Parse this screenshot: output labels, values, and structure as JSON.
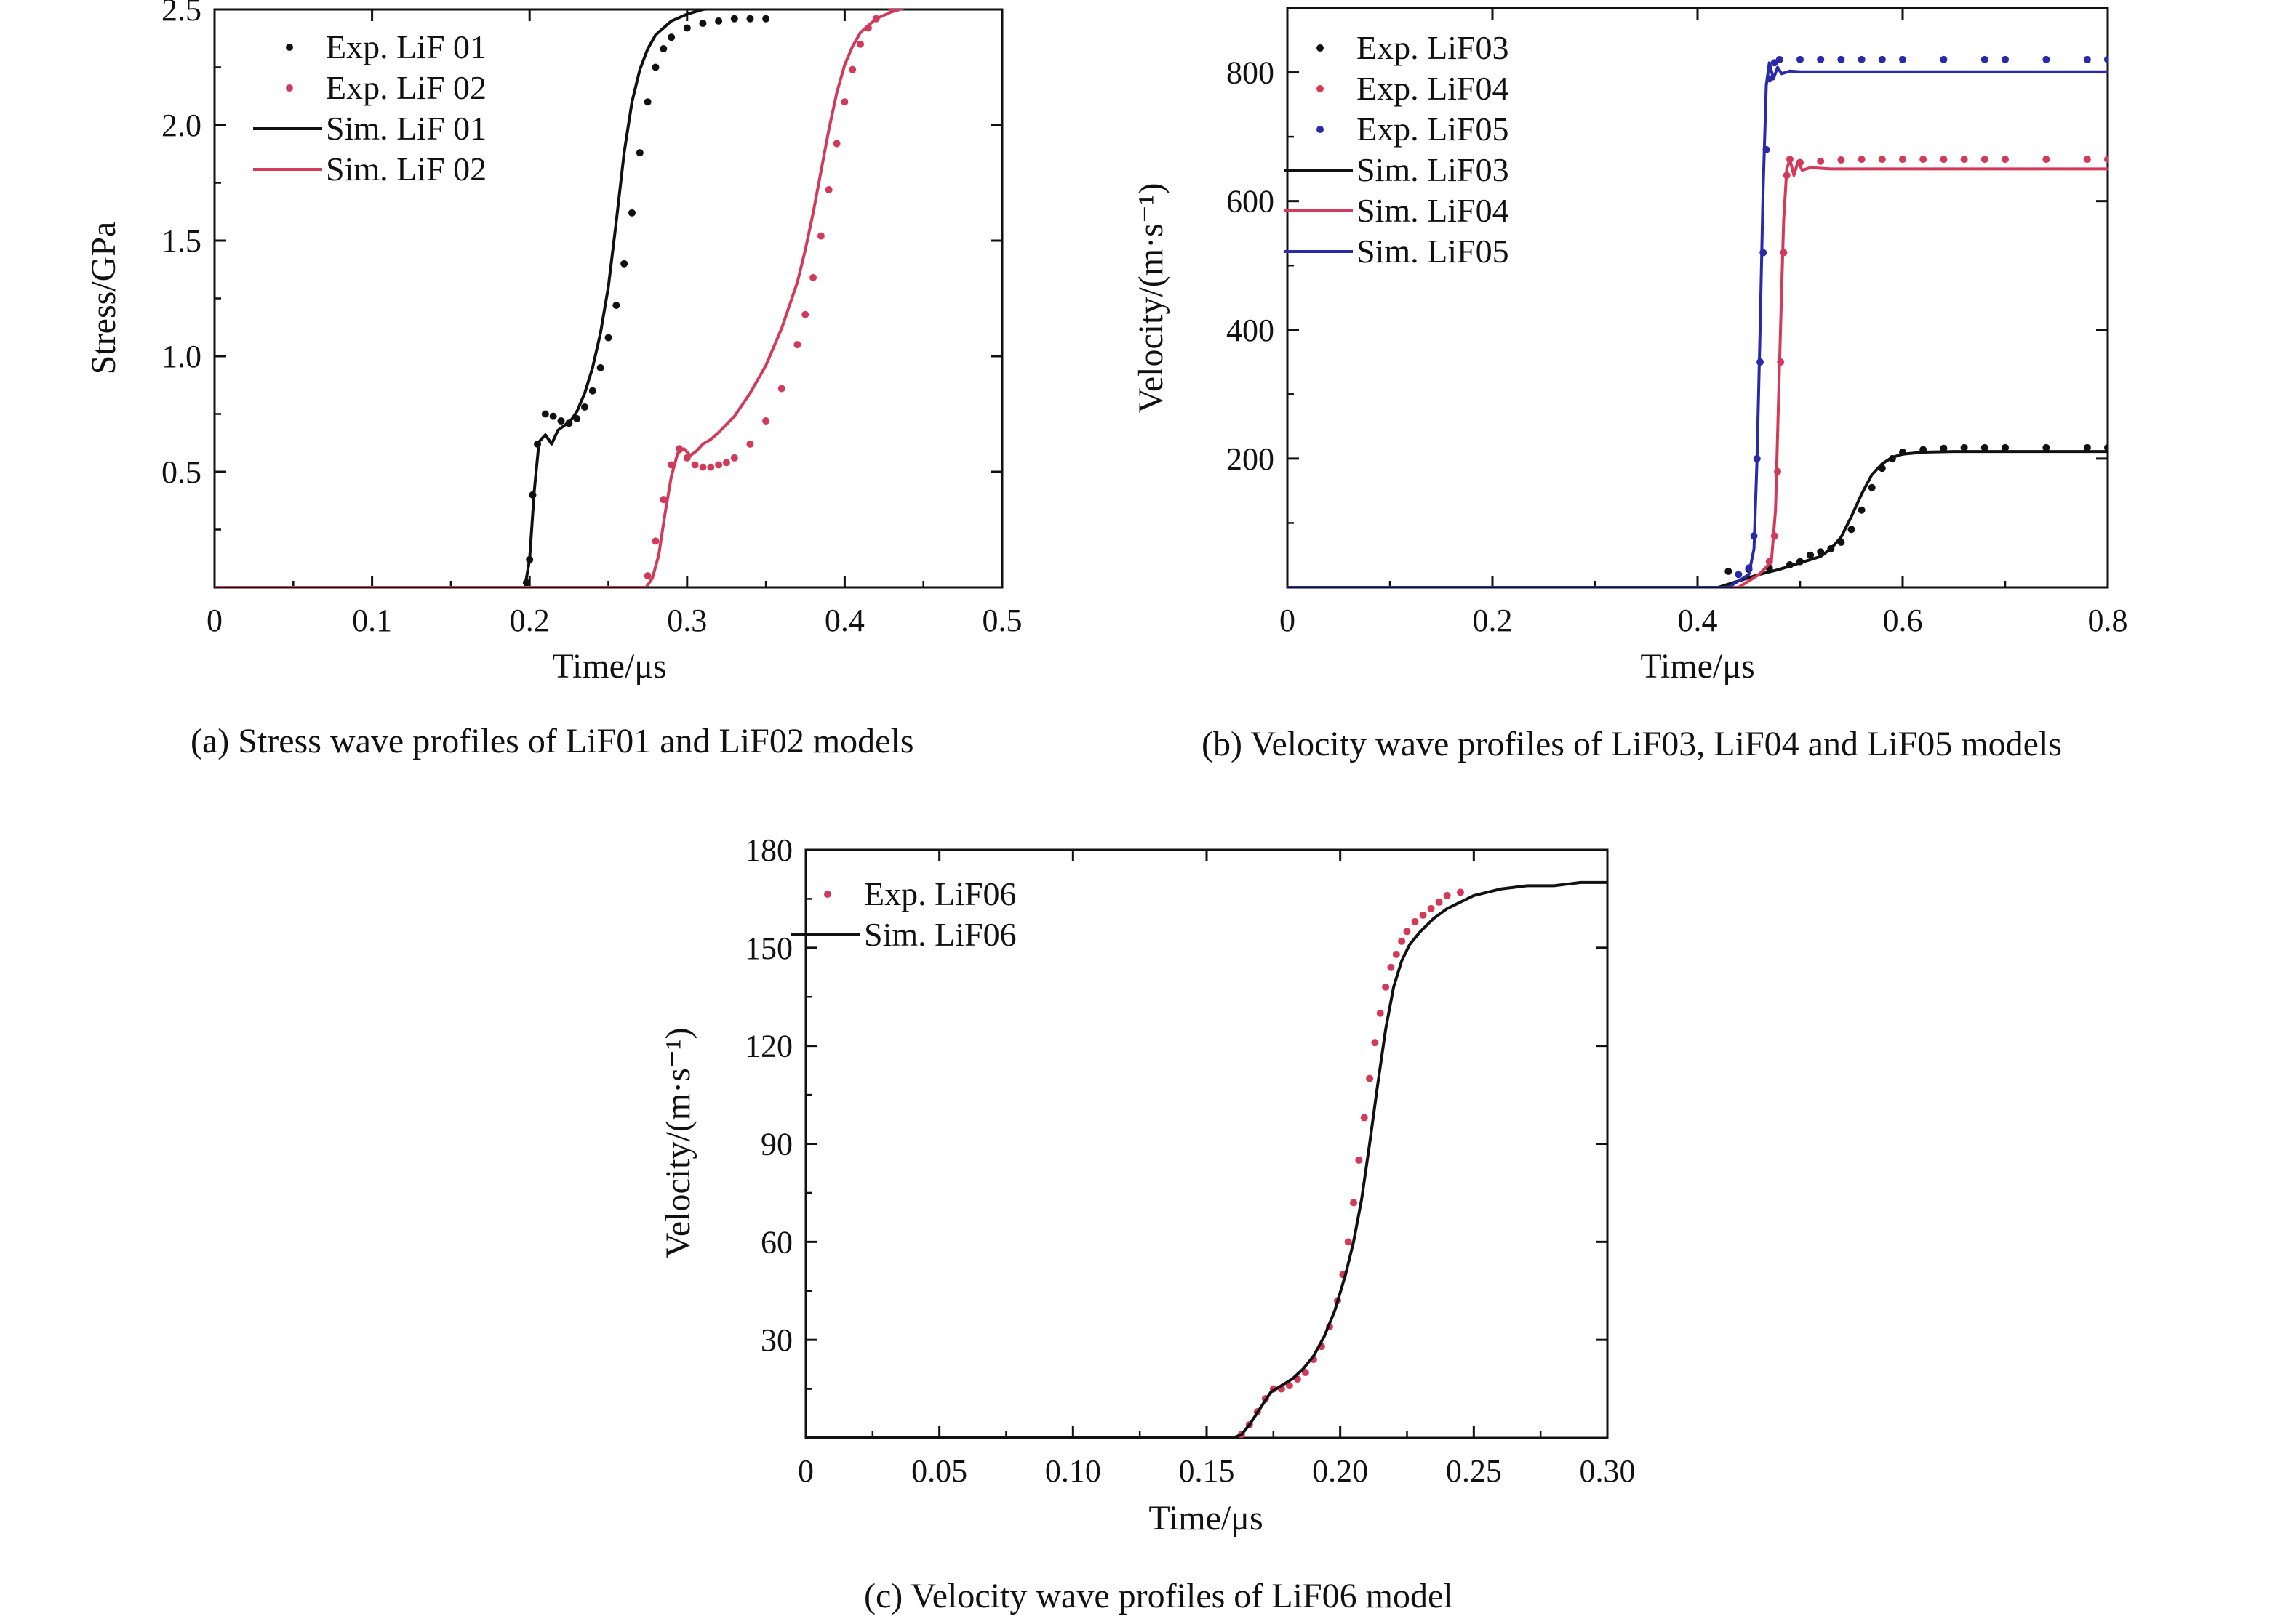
{
  "colors": {
    "black": "#111111",
    "red": "#d23a5a",
    "blue": "#2a2aa8"
  },
  "captions": {
    "a": "(a) Stress wave profiles of LiF01 and LiF02 models",
    "b": "(b) Velocity wave profiles of LiF03, LiF04 and LiF05 models",
    "c": "(c) Velocity wave profiles of LiF06 model"
  },
  "chart_data": [
    {
      "id": "a",
      "type": "line",
      "xlabel": "Time/μs",
      "ylabel": "Stress/GPa",
      "xlim": [
        0,
        0.5
      ],
      "ylim": [
        0,
        2.5
      ],
      "xticks": [
        0,
        0.1,
        0.2,
        0.3,
        0.4,
        0.5
      ],
      "xtick_labels": [
        "0",
        "0.1",
        "0.2",
        "0.3",
        "0.4",
        "0.5"
      ],
      "yticks": [
        0.5,
        1.0,
        1.5,
        2.0,
        2.5
      ],
      "ytick_labels": [
        "0.5",
        "1.0",
        "1.5",
        "2.0",
        "2.5"
      ],
      "legend_position": "top-left",
      "series": [
        {
          "name": "Exp. LiF 01",
          "style": "dots",
          "color": "#111111",
          "x": [
            0.198,
            0.2,
            0.202,
            0.205,
            0.21,
            0.215,
            0.22,
            0.225,
            0.23,
            0.235,
            0.24,
            0.245,
            0.25,
            0.255,
            0.26,
            0.265,
            0.27,
            0.275,
            0.28,
            0.285,
            0.29,
            0.3,
            0.31,
            0.32,
            0.33,
            0.34,
            0.35
          ],
          "y": [
            0.02,
            0.12,
            0.4,
            0.62,
            0.75,
            0.74,
            0.72,
            0.71,
            0.73,
            0.78,
            0.85,
            0.95,
            1.08,
            1.22,
            1.4,
            1.62,
            1.88,
            2.1,
            2.25,
            2.33,
            2.38,
            2.42,
            2.44,
            2.45,
            2.46,
            2.46,
            2.46
          ]
        },
        {
          "name": "Exp. LiF 02",
          "style": "dots",
          "color": "#d23a5a",
          "x": [
            0.275,
            0.28,
            0.285,
            0.29,
            0.295,
            0.3,
            0.305,
            0.31,
            0.315,
            0.32,
            0.325,
            0.33,
            0.34,
            0.35,
            0.36,
            0.37,
            0.375,
            0.38,
            0.385,
            0.39,
            0.395,
            0.4,
            0.405,
            0.41,
            0.415,
            0.42,
            0.43,
            0.44,
            0.45,
            0.455
          ],
          "y": [
            0.05,
            0.2,
            0.38,
            0.53,
            0.6,
            0.56,
            0.53,
            0.52,
            0.52,
            0.53,
            0.54,
            0.56,
            0.62,
            0.72,
            0.86,
            1.05,
            1.18,
            1.34,
            1.52,
            1.72,
            1.92,
            2.1,
            2.24,
            2.35,
            2.42,
            2.46,
            2.5,
            2.53,
            2.55,
            2.56
          ]
        },
        {
          "name": "Sim. LiF 01",
          "style": "line",
          "color": "#111111",
          "x": [
            0,
            0.197,
            0.2,
            0.203,
            0.206,
            0.21,
            0.214,
            0.218,
            0.222,
            0.226,
            0.23,
            0.235,
            0.24,
            0.245,
            0.25,
            0.255,
            0.26,
            0.265,
            0.27,
            0.275,
            0.28,
            0.29,
            0.3,
            0.31,
            0.32,
            0.33,
            0.34,
            0.35
          ],
          "y": [
            0,
            0,
            0.12,
            0.42,
            0.63,
            0.66,
            0.62,
            0.68,
            0.7,
            0.72,
            0.76,
            0.84,
            0.95,
            1.1,
            1.3,
            1.58,
            1.88,
            2.1,
            2.24,
            2.33,
            2.39,
            2.45,
            2.48,
            2.5,
            2.51,
            2.52,
            2.53,
            2.54
          ]
        },
        {
          "name": "Sim. LiF 02",
          "style": "line",
          "color": "#d23a5a",
          "x": [
            0,
            0.274,
            0.278,
            0.282,
            0.286,
            0.29,
            0.294,
            0.298,
            0.302,
            0.306,
            0.31,
            0.315,
            0.32,
            0.33,
            0.34,
            0.35,
            0.36,
            0.37,
            0.375,
            0.38,
            0.385,
            0.39,
            0.395,
            0.4,
            0.405,
            0.41,
            0.42,
            0.43,
            0.44,
            0.45,
            0.46
          ],
          "y": [
            0,
            0,
            0.04,
            0.14,
            0.32,
            0.48,
            0.58,
            0.6,
            0.57,
            0.59,
            0.62,
            0.64,
            0.67,
            0.74,
            0.84,
            0.96,
            1.12,
            1.32,
            1.46,
            1.62,
            1.8,
            1.98,
            2.14,
            2.26,
            2.34,
            2.4,
            2.46,
            2.49,
            2.51,
            2.52,
            2.52
          ]
        }
      ]
    },
    {
      "id": "b",
      "type": "line",
      "xlabel": "Time/μs",
      "ylabel": "Velocity/(m·s⁻¹)",
      "xlim": [
        0,
        0.8
      ],
      "ylim": [
        0,
        900
      ],
      "xticks": [
        0,
        0.2,
        0.4,
        0.6,
        0.8
      ],
      "xtick_labels": [
        "0",
        "0.2",
        "0.4",
        "0.6",
        "0.8"
      ],
      "yticks": [
        200,
        400,
        600,
        800
      ],
      "ytick_labels": [
        "200",
        "400",
        "600",
        "800"
      ],
      "legend_position": "top-left",
      "series": [
        {
          "name": "Exp. LiF03",
          "style": "dots",
          "color": "#111111",
          "x": [
            0.43,
            0.45,
            0.47,
            0.49,
            0.5,
            0.51,
            0.52,
            0.53,
            0.54,
            0.55,
            0.56,
            0.57,
            0.58,
            0.59,
            0.6,
            0.62,
            0.64,
            0.66,
            0.68,
            0.7,
            0.74,
            0.78,
            0.8
          ],
          "y": [
            25,
            28,
            30,
            35,
            40,
            50,
            55,
            60,
            70,
            90,
            120,
            155,
            185,
            200,
            210,
            214,
            216,
            217,
            217,
            217,
            217,
            217,
            217
          ]
        },
        {
          "name": "Exp. LiF04",
          "style": "dots",
          "color": "#d23a5a",
          "x": [
            0.47,
            0.475,
            0.478,
            0.481,
            0.484,
            0.487,
            0.49,
            0.5,
            0.52,
            0.54,
            0.56,
            0.58,
            0.6,
            0.62,
            0.64,
            0.66,
            0.68,
            0.7,
            0.74,
            0.78,
            0.8
          ],
          "y": [
            40,
            80,
            180,
            350,
            520,
            640,
            665,
            660,
            662,
            664,
            665,
            665,
            665,
            665,
            665,
            665,
            665,
            665,
            665,
            665,
            665
          ]
        },
        {
          "name": "Exp. LiF05",
          "style": "dots",
          "color": "#2a2aa8",
          "x": [
            0.44,
            0.45,
            0.455,
            0.458,
            0.461,
            0.464,
            0.467,
            0.47,
            0.475,
            0.48,
            0.5,
            0.52,
            0.54,
            0.56,
            0.58,
            0.6,
            0.64,
            0.68,
            0.7,
            0.74,
            0.78,
            0.8
          ],
          "y": [
            20,
            30,
            80,
            200,
            350,
            520,
            680,
            790,
            815,
            820,
            820,
            820,
            820,
            820,
            820,
            820,
            820,
            820,
            820,
            820,
            820,
            820
          ]
        },
        {
          "name": "Sim. LiF03",
          "style": "line",
          "color": "#111111",
          "x": [
            0,
            0.42,
            0.44,
            0.46,
            0.48,
            0.5,
            0.52,
            0.53,
            0.54,
            0.55,
            0.56,
            0.57,
            0.58,
            0.59,
            0.6,
            0.62,
            0.65,
            0.7,
            0.75,
            0.8
          ],
          "y": [
            0,
            0,
            10,
            20,
            28,
            38,
            48,
            60,
            78,
            110,
            145,
            175,
            192,
            202,
            207,
            210,
            211,
            211,
            211,
            211
          ]
        },
        {
          "name": "Sim. LiF04",
          "style": "line",
          "color": "#d23a5a",
          "x": [
            0,
            0.44,
            0.46,
            0.472,
            0.476,
            0.48,
            0.484,
            0.487,
            0.49,
            0.494,
            0.498,
            0.502,
            0.51,
            0.53,
            0.6,
            0.7,
            0.8
          ],
          "y": [
            0,
            0,
            20,
            40,
            120,
            350,
            570,
            650,
            665,
            640,
            662,
            648,
            652,
            650,
            650,
            650,
            650
          ]
        },
        {
          "name": "Sim. LiF05",
          "style": "line",
          "color": "#2a2aa8",
          "x": [
            0,
            0.43,
            0.45,
            0.455,
            0.458,
            0.461,
            0.464,
            0.467,
            0.47,
            0.474,
            0.478,
            0.482,
            0.49,
            0.5,
            0.6,
            0.7,
            0.8
          ],
          "y": [
            0,
            0,
            20,
            60,
            200,
            400,
            620,
            780,
            815,
            790,
            808,
            798,
            802,
            801,
            801,
            801,
            801
          ]
        }
      ]
    },
    {
      "id": "c",
      "type": "line",
      "xlabel": "Time/μs",
      "ylabel": "Velocity/(m·s⁻¹)",
      "xlim": [
        0,
        0.3
      ],
      "ylim": [
        0,
        180
      ],
      "xticks": [
        0,
        0.05,
        0.1,
        0.15,
        0.2,
        0.25,
        0.3
      ],
      "xtick_labels": [
        "0",
        "0.05",
        "0.10",
        "0.15",
        "0.20",
        "0.25",
        "0.30"
      ],
      "yticks": [
        30,
        60,
        90,
        120,
        150,
        180
      ],
      "ytick_labels": [
        "30",
        "60",
        "90",
        "120",
        "150",
        "180"
      ],
      "legend_position": "top-left",
      "series": [
        {
          "name": "Exp. LiF06",
          "style": "dots",
          "color": "#d23a5a",
          "x": [
            0.163,
            0.166,
            0.169,
            0.172,
            0.175,
            0.178,
            0.181,
            0.184,
            0.187,
            0.19,
            0.193,
            0.196,
            0.199,
            0.201,
            0.203,
            0.205,
            0.207,
            0.209,
            0.211,
            0.213,
            0.215,
            0.217,
            0.219,
            0.221,
            0.223,
            0.225,
            0.228,
            0.231,
            0.234,
            0.237,
            0.24,
            0.245
          ],
          "y": [
            1,
            4,
            8,
            12,
            15,
            15,
            16,
            18,
            20,
            24,
            28,
            34,
            42,
            50,
            60,
            72,
            85,
            98,
            110,
            121,
            130,
            138,
            144,
            148,
            152,
            155,
            158,
            160,
            162,
            164,
            166,
            167
          ]
        },
        {
          "name": "Sim. LiF06",
          "style": "line",
          "color": "#111111",
          "x": [
            0,
            0.16,
            0.163,
            0.166,
            0.17,
            0.174,
            0.178,
            0.182,
            0.186,
            0.19,
            0.194,
            0.198,
            0.202,
            0.205,
            0.208,
            0.211,
            0.214,
            0.217,
            0.22,
            0.223,
            0.226,
            0.23,
            0.235,
            0.24,
            0.25,
            0.26,
            0.27,
            0.28,
            0.29,
            0.3
          ],
          "y": [
            0,
            0,
            1,
            4,
            9,
            14,
            16,
            18,
            21,
            25,
            31,
            39,
            50,
            60,
            73,
            90,
            108,
            125,
            138,
            146,
            151,
            155,
            159,
            162,
            166,
            168,
            169,
            169,
            170,
            170
          ]
        }
      ]
    }
  ]
}
